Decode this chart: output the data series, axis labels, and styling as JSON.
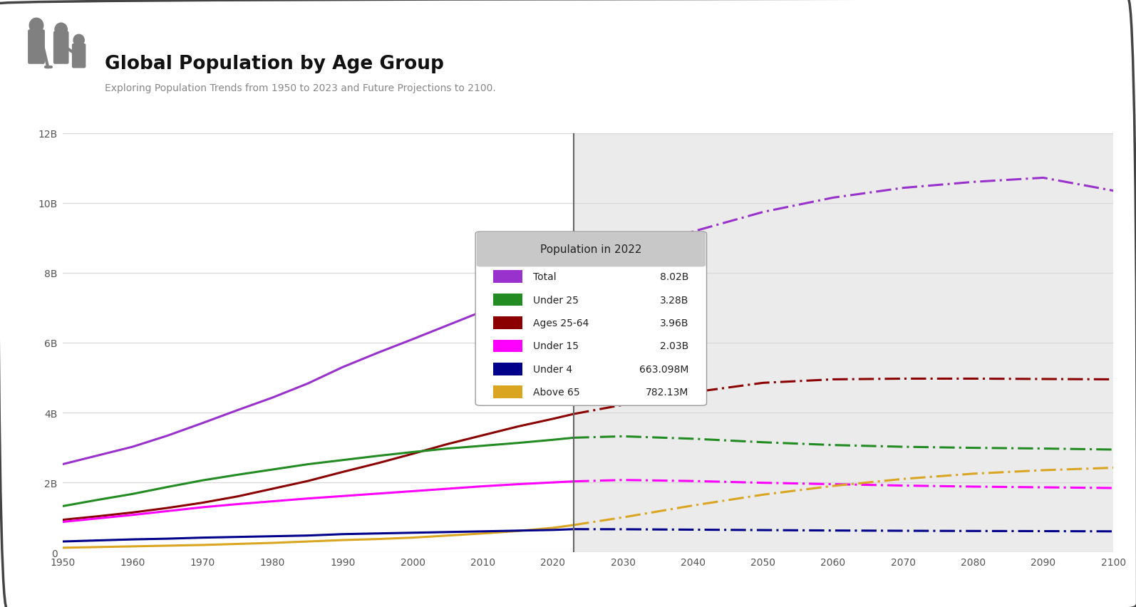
{
  "title": "Global Population by Age Group",
  "subtitle": "Exploring Population Trends from 1950 to 2023 and Future Projections to 2100.",
  "xmin": 1950,
  "xmax": 2100,
  "ymin": 0,
  "ymax": 12,
  "yticks": [
    0,
    2,
    4,
    6,
    8,
    10,
    12
  ],
  "ytick_labels": [
    "0",
    "2B",
    "4B",
    "6B",
    "8B",
    "10B",
    "12B"
  ],
  "xticks": [
    1950,
    1960,
    1970,
    1980,
    1990,
    2000,
    2010,
    2020,
    2030,
    2040,
    2050,
    2060,
    2070,
    2080,
    2090,
    2100
  ],
  "split_year": 2023,
  "legend_title": "Population in 2022",
  "legend_entries": [
    {
      "label": "Total",
      "value": "8.02B",
      "color": "#9932CC"
    },
    {
      "label": "Under 25",
      "value": "3.28B",
      "color": "#228B22"
    },
    {
      "label": "Ages 25-64",
      "value": "3.96B",
      "color": "#8B0000"
    },
    {
      "label": "Under 15",
      "value": "2.03B",
      "color": "#FF00FF"
    },
    {
      "label": "Under 4",
      "value": "663.098M",
      "color": "#00008B"
    },
    {
      "label": "Above 65",
      "value": "782.13M",
      "color": "#DAA520"
    }
  ],
  "series": {
    "total": {
      "color": "#9932CC",
      "historical_x": [
        1950,
        1955,
        1960,
        1965,
        1970,
        1975,
        1980,
        1985,
        1990,
        1995,
        2000,
        2005,
        2010,
        2015,
        2020,
        2023
      ],
      "historical_y": [
        2.52,
        2.77,
        3.02,
        3.34,
        3.7,
        4.07,
        4.43,
        4.83,
        5.3,
        5.71,
        6.1,
        6.5,
        6.9,
        7.38,
        7.79,
        8.02
      ],
      "projection_x": [
        2023,
        2030,
        2040,
        2050,
        2060,
        2070,
        2080,
        2090,
        2100
      ],
      "projection_y": [
        8.02,
        8.55,
        9.18,
        9.74,
        10.15,
        10.43,
        10.6,
        10.72,
        10.35
      ]
    },
    "under25": {
      "color": "#228B22",
      "historical_x": [
        1950,
        1955,
        1960,
        1965,
        1970,
        1975,
        1980,
        1985,
        1990,
        1995,
        2000,
        2005,
        2010,
        2015,
        2020,
        2023
      ],
      "historical_y": [
        1.32,
        1.5,
        1.67,
        1.87,
        2.06,
        2.22,
        2.37,
        2.52,
        2.64,
        2.76,
        2.87,
        2.97,
        3.05,
        3.13,
        3.22,
        3.28
      ],
      "projection_x": [
        2023,
        2030,
        2040,
        2050,
        2060,
        2070,
        2080,
        2090,
        2100
      ],
      "projection_y": [
        3.28,
        3.32,
        3.25,
        3.15,
        3.07,
        3.02,
        2.99,
        2.97,
        2.94
      ]
    },
    "ages2564": {
      "color": "#8B0000",
      "historical_x": [
        1950,
        1955,
        1960,
        1965,
        1970,
        1975,
        1980,
        1985,
        1990,
        1995,
        2000,
        2005,
        2010,
        2015,
        2020,
        2023
      ],
      "historical_y": [
        0.93,
        1.03,
        1.14,
        1.27,
        1.42,
        1.6,
        1.82,
        2.04,
        2.3,
        2.55,
        2.82,
        3.1,
        3.35,
        3.6,
        3.82,
        3.96
      ],
      "projection_x": [
        2023,
        2030,
        2040,
        2050,
        2060,
        2070,
        2080,
        2090,
        2100
      ],
      "projection_y": [
        3.96,
        4.22,
        4.58,
        4.85,
        4.95,
        4.97,
        4.97,
        4.96,
        4.95
      ]
    },
    "under15": {
      "color": "#FF00FF",
      "historical_x": [
        1950,
        1955,
        1960,
        1965,
        1970,
        1975,
        1980,
        1985,
        1990,
        1995,
        2000,
        2005,
        2010,
        2015,
        2020,
        2023
      ],
      "historical_y": [
        0.87,
        0.97,
        1.07,
        1.18,
        1.29,
        1.38,
        1.46,
        1.54,
        1.61,
        1.68,
        1.75,
        1.82,
        1.89,
        1.95,
        2.0,
        2.03
      ],
      "projection_x": [
        2023,
        2030,
        2040,
        2050,
        2060,
        2070,
        2080,
        2090,
        2100
      ],
      "projection_y": [
        2.03,
        2.07,
        2.04,
        1.99,
        1.95,
        1.91,
        1.88,
        1.86,
        1.84
      ]
    },
    "under4": {
      "color": "#00008B",
      "historical_x": [
        1950,
        1955,
        1960,
        1965,
        1970,
        1975,
        1980,
        1985,
        1990,
        1995,
        2000,
        2005,
        2010,
        2015,
        2020,
        2023
      ],
      "historical_y": [
        0.31,
        0.34,
        0.37,
        0.39,
        0.42,
        0.44,
        0.46,
        0.48,
        0.52,
        0.54,
        0.56,
        0.58,
        0.6,
        0.62,
        0.64,
        0.663
      ],
      "projection_x": [
        2023,
        2030,
        2040,
        2050,
        2060,
        2070,
        2080,
        2090,
        2100
      ],
      "projection_y": [
        0.663,
        0.66,
        0.648,
        0.636,
        0.624,
        0.616,
        0.61,
        0.606,
        0.6
      ]
    },
    "above65": {
      "color": "#DAA520",
      "historical_x": [
        1950,
        1955,
        1960,
        1965,
        1970,
        1975,
        1980,
        1985,
        1990,
        1995,
        2000,
        2005,
        2010,
        2015,
        2020,
        2023
      ],
      "historical_y": [
        0.13,
        0.15,
        0.17,
        0.19,
        0.21,
        0.24,
        0.27,
        0.31,
        0.35,
        0.38,
        0.42,
        0.48,
        0.54,
        0.61,
        0.7,
        0.782
      ],
      "projection_x": [
        2023,
        2030,
        2040,
        2050,
        2060,
        2070,
        2080,
        2090,
        2100
      ],
      "projection_y": [
        0.782,
        1.0,
        1.34,
        1.65,
        1.9,
        2.1,
        2.25,
        2.35,
        2.42
      ]
    }
  },
  "bg_color": "#FFFFFF",
  "projection_bg": "#EBEBEB",
  "chart_bg": "#FFFFFF",
  "grid_color": "#D8D8D8",
  "border_color": "#444444",
  "linewidth": 2.2
}
